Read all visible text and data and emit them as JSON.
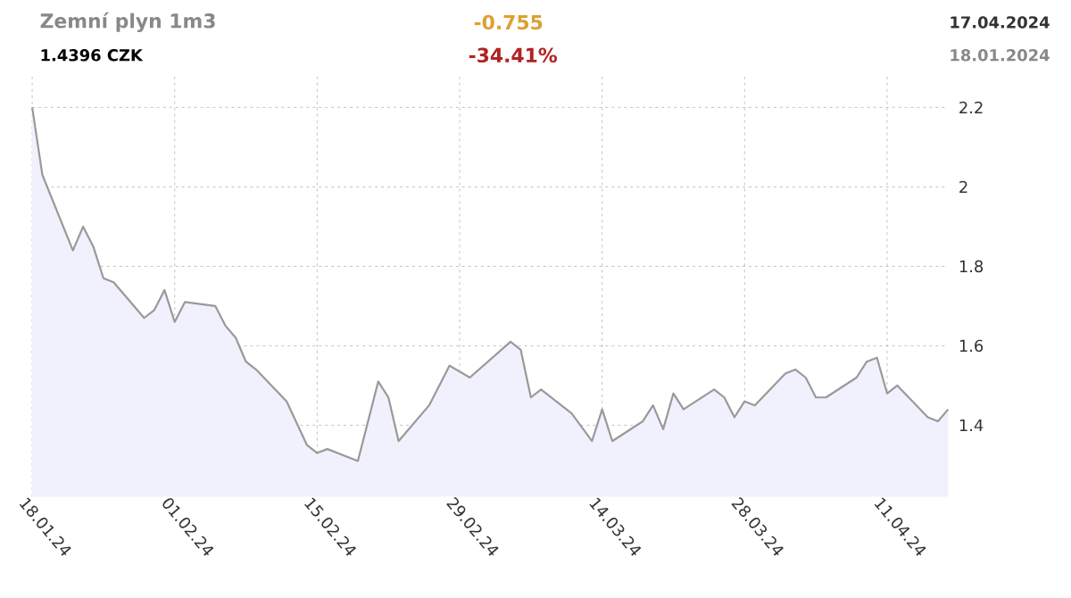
{
  "chart_data": {
    "type": "area",
    "title": "Zemní plyn 1m3",
    "annotations": [
      "1.4396 CZK",
      "-0.755",
      "-34.41%",
      "17.04.2024",
      "18.01.2024"
    ],
    "x": [
      "2024-01-18",
      "2024-01-19",
      "2024-01-22",
      "2024-01-23",
      "2024-01-24",
      "2024-01-25",
      "2024-01-26",
      "2024-01-29",
      "2024-01-30",
      "2024-01-31",
      "2024-02-01",
      "2024-02-02",
      "2024-02-05",
      "2024-02-06",
      "2024-02-07",
      "2024-02-08",
      "2024-02-09",
      "2024-02-12",
      "2024-02-14",
      "2024-02-15",
      "2024-02-16",
      "2024-02-19",
      "2024-02-21",
      "2024-02-22",
      "2024-02-23",
      "2024-02-26",
      "2024-02-28",
      "2024-03-01",
      "2024-03-05",
      "2024-03-06",
      "2024-03-07",
      "2024-03-08",
      "2024-03-11",
      "2024-03-13",
      "2024-03-14",
      "2024-03-15",
      "2024-03-18",
      "2024-03-19",
      "2024-03-20",
      "2024-03-21",
      "2024-03-22",
      "2024-03-25",
      "2024-03-26",
      "2024-03-27",
      "2024-03-28",
      "2024-03-29",
      "2024-04-01",
      "2024-04-02",
      "2024-04-03",
      "2024-04-04",
      "2024-04-05",
      "2024-04-08",
      "2024-04-09",
      "2024-04-10",
      "2024-04-11",
      "2024-04-12",
      "2024-04-15",
      "2024-04-16",
      "2024-04-17"
    ],
    "series": [
      {
        "color": "#999999",
        "values": [
          2.2,
          2.03,
          1.84,
          1.9,
          1.85,
          1.77,
          1.76,
          1.67,
          1.69,
          1.74,
          1.66,
          1.71,
          1.7,
          1.65,
          1.62,
          1.56,
          1.54,
          1.46,
          1.35,
          1.33,
          1.34,
          1.31,
          1.51,
          1.47,
          1.36,
          1.45,
          1.55,
          1.52,
          1.61,
          1.59,
          1.47,
          1.49,
          1.43,
          1.36,
          1.44,
          1.36,
          1.41,
          1.45,
          1.39,
          1.48,
          1.44,
          1.49,
          1.47,
          1.42,
          1.46,
          1.45,
          1.53,
          1.54,
          1.52,
          1.47,
          1.47,
          1.52,
          1.56,
          1.57,
          1.48,
          1.5,
          1.42,
          1.41,
          1.44
        ]
      }
    ],
    "xlim": [
      "2024-01-18",
      "2024-04-17"
    ],
    "ylim": [
      1.22,
      2.28
    ],
    "xticks": [
      {
        "value": "2024-01-18",
        "label": "18.01.24"
      },
      {
        "value": "2024-02-01",
        "label": "01.02.24"
      },
      {
        "value": "2024-02-15",
        "label": "15.02.24"
      },
      {
        "value": "2024-02-29",
        "label": "29.02.24"
      },
      {
        "value": "2024-03-14",
        "label": "14.03.24"
      },
      {
        "value": "2024-03-28",
        "label": "28.03.24"
      },
      {
        "value": "2024-04-11",
        "label": "11.04.24"
      }
    ],
    "yticks": [
      1.4,
      1.6,
      1.8,
      2,
      2.2
    ],
    "grid": true
  }
}
